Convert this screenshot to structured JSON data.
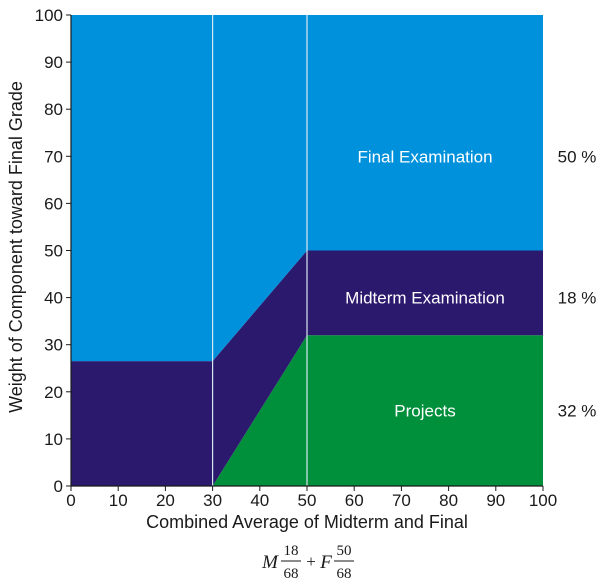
{
  "chart_data": {
    "type": "area",
    "xlabel": "Combined Average of Midterm and Final",
    "ylabel": "Weight of Component toward Final Grade",
    "xlim": [
      0,
      100
    ],
    "ylim": [
      0,
      100
    ],
    "x_ticks": [
      0,
      10,
      20,
      30,
      40,
      50,
      60,
      70,
      80,
      90,
      100
    ],
    "y_ticks": [
      0,
      10,
      20,
      30,
      40,
      50,
      60,
      70,
      80,
      90,
      100
    ],
    "vertical_lines": [
      30,
      50
    ],
    "series": [
      {
        "name": "Projects",
        "color": "#008f3a",
        "x": [
          0,
          30,
          50,
          100
        ],
        "lower": [
          0,
          0,
          0,
          0
        ],
        "upper": [
          0,
          0,
          32,
          32
        ]
      },
      {
        "name": "Midterm Examination",
        "color": "#2b196e",
        "x": [
          0,
          30,
          50,
          100
        ],
        "lower": [
          0,
          0,
          32,
          32
        ],
        "upper": [
          26.5,
          26.5,
          50,
          50
        ]
      },
      {
        "name": "Final Examination",
        "color": "#0091dc",
        "x": [
          0,
          30,
          50,
          100
        ],
        "lower": [
          26.5,
          26.5,
          50,
          50
        ],
        "upper": [
          100,
          100,
          100,
          100
        ]
      }
    ],
    "region_labels": [
      {
        "text": "Final Examination",
        "x": 75,
        "y": 70
      },
      {
        "text": "Midterm Examination",
        "x": 75,
        "y": 40
      },
      {
        "text": "Projects",
        "x": 75,
        "y": 16
      }
    ],
    "percent_labels": [
      {
        "text": "50 %",
        "y": 70
      },
      {
        "text": "18 %",
        "y": 40
      },
      {
        "text": "32 %",
        "y": 16
      }
    ],
    "formula": {
      "m": "M",
      "m_num": "18",
      "m_den": "68",
      "plus": "+",
      "f": "F",
      "f_num": "50",
      "f_den": "68"
    }
  }
}
